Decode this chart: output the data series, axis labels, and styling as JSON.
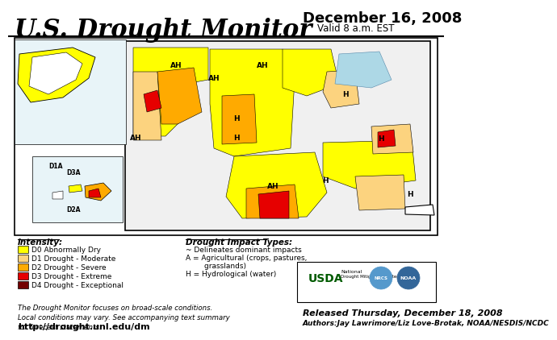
{
  "title": "U.S. Drought Monitor",
  "date": "December 16, 2008",
  "valid": "Valid 8 a.m. EST",
  "released": "Released Thursday, December 18, 2008",
  "authors": "Authors:Jay Lawrimore/Liz Love-Brotak, NOAA/NESDIS/NCDC",
  "url": "http://drought.unl.edu/dm",
  "bg_color": "#FFFFFF",
  "intensity_label": "Intensity:",
  "impact_label": "Drought Impact Types:",
  "legend_items": [
    {
      "color": "#FFFF00",
      "label": "D0 Abnormally Dry"
    },
    {
      "color": "#FCD37F",
      "label": "D1 Drought - Moderate"
    },
    {
      "color": "#FFAA00",
      "label": "D2 Drought - Severe"
    },
    {
      "color": "#E60000",
      "label": "D3 Drought - Extreme"
    },
    {
      "color": "#730000",
      "label": "D4 Drought - Exceptional"
    }
  ],
  "impact_items": [
    "~ Delineates dominant impacts",
    "A = Agricultural (crops, pastures,",
    "        grasslands)",
    "H = Hydrological (water)"
  ],
  "footnote": "The Drought Monitor focuses on broad-scale conditions.\nLocal conditions may vary. See accompanying text summary\nfor forecast statements.",
  "border_color": "#000000"
}
